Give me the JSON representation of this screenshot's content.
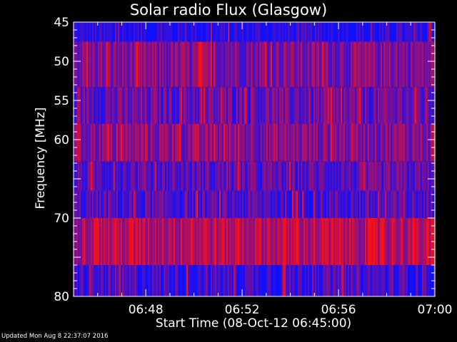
{
  "colors": {
    "background": "#000000",
    "axis": "#ffffff",
    "low_flux": "#1010ff",
    "high_flux": "#ff1010"
  },
  "footer": {
    "updated_text": "Updated Mon Aug  8 22:37:07 2016"
  },
  "chart_data": {
    "type": "heatmap",
    "title": "Solar radio Flux (Glasgow)",
    "xlabel": "Start Time (08-Oct-12 06:45:00)",
    "ylabel": "Frequency [MHz]",
    "xlim": [
      "06:45:00",
      "07:00:00"
    ],
    "ylim": [
      45,
      80
    ],
    "y_reversed": true,
    "xticks": [
      "06:48",
      "06:52",
      "06:56",
      "07:00"
    ],
    "yticks": [
      "45",
      "50",
      "55",
      "60",
      "70",
      "80"
    ],
    "ytick_values": [
      45,
      50,
      55,
      60,
      70,
      80
    ],
    "colormap": "blue (low) to red (high)",
    "frequency_bands": [
      {
        "f_low": 45.0,
        "f_high": 47.5,
        "mean_level": 0.05
      },
      {
        "f_low": 47.5,
        "f_high": 53.3,
        "mean_level": 0.45
      },
      {
        "f_low": 53.3,
        "f_high": 58.0,
        "mean_level": 0.35
      },
      {
        "f_low": 58.0,
        "f_high": 62.8,
        "mean_level": 0.5
      },
      {
        "f_low": 62.8,
        "f_high": 66.5,
        "mean_level": 0.3
      },
      {
        "f_low": 66.5,
        "f_high": 70.0,
        "mean_level": 0.25
      },
      {
        "f_low": 70.0,
        "f_high": 76.0,
        "mean_level": 0.7
      },
      {
        "f_low": 76.0,
        "f_high": 80.0,
        "mean_level": 0.2
      }
    ],
    "bursts": [
      {
        "time": "06:50:15",
        "f_low": 47.5,
        "f_high": 53.3,
        "level": 1.0
      },
      {
        "time": "06:53:45",
        "f_low": 76.0,
        "f_high": 80.0,
        "level": 0.9
      },
      {
        "time": "06:57:50",
        "f_low": 70.0,
        "f_high": 76.0,
        "level": 1.0
      }
    ]
  }
}
